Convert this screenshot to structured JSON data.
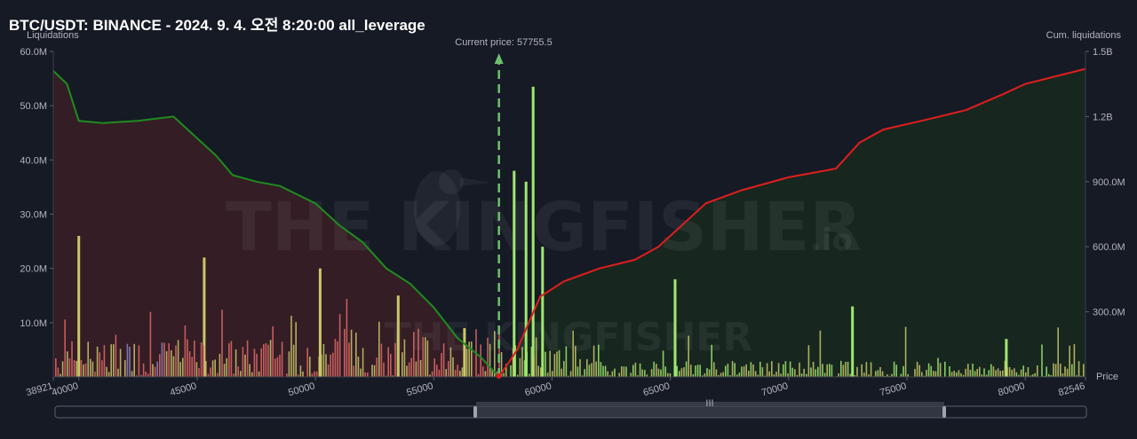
{
  "title": "BTC/USDT: BINANCE - 2024. 9. 4. 오전 8:20:00 all_leverage",
  "watermark": {
    "brand": "THE KINGFISHER",
    "suffix": ".io"
  },
  "colors": {
    "background": "#161a25",
    "short_cum_line": "#e01e1e",
    "long_cum_line": "#1e8c1e",
    "long_fill": "#3a1e26",
    "short_fill": "#17291f",
    "bar_green": "#9fe870",
    "bar_yellow": "#c9c76a",
    "bar_red": "#e06868",
    "bar_purple": "#8a86c8",
    "price_marker": "#6fbf6f"
  },
  "chart_data": {
    "type": "bar",
    "left_axis": {
      "label": "Liquidations",
      "ticks": [
        "60.0M",
        "50.0M",
        "40.0M",
        "30.0M",
        "20.0M",
        "10.0M"
      ],
      "ylim": [
        0,
        60000000
      ]
    },
    "right_axis": {
      "label": "Cum. liquidations",
      "ticks": [
        "1.5B",
        "1.2B",
        "900.0M",
        "600.0M",
        "300.0M"
      ],
      "ylim": [
        0,
        1500000000
      ]
    },
    "x_axis": {
      "label": "Price",
      "range": [
        38921,
        82546
      ],
      "ticks": [
        "38921",
        "40000",
        "45000",
        "50000",
        "55000",
        "60000",
        "65000",
        "70000",
        "75000",
        "80000",
        "82546"
      ]
    },
    "current_price": {
      "label": "Current price: 57755.5",
      "value": 57755.5
    },
    "cumulative_long_liquidations": {
      "points": [
        [
          38921,
          1410000000
        ],
        [
          39500,
          1350000000
        ],
        [
          40000,
          1180000000
        ],
        [
          41000,
          1170000000
        ],
        [
          42500,
          1180000000
        ],
        [
          44000,
          1200000000
        ],
        [
          45000,
          1100000000
        ],
        [
          45800,
          1020000000
        ],
        [
          46500,
          930000000
        ],
        [
          47500,
          900000000
        ],
        [
          48500,
          880000000
        ],
        [
          50000,
          800000000
        ],
        [
          51000,
          700000000
        ],
        [
          52000,
          620000000
        ],
        [
          53000,
          500000000
        ],
        [
          54000,
          430000000
        ],
        [
          55000,
          320000000
        ],
        [
          56000,
          180000000
        ],
        [
          57000,
          90000000
        ],
        [
          57755.5,
          0
        ]
      ]
    },
    "cumulative_short_liquidations": {
      "points": [
        [
          57755.5,
          0
        ],
        [
          58500,
          120000000
        ],
        [
          59500,
          370000000
        ],
        [
          60500,
          440000000
        ],
        [
          62000,
          500000000
        ],
        [
          63500,
          540000000
        ],
        [
          64500,
          600000000
        ],
        [
          65500,
          700000000
        ],
        [
          66500,
          800000000
        ],
        [
          68000,
          860000000
        ],
        [
          70000,
          920000000
        ],
        [
          72000,
          960000000
        ],
        [
          73000,
          1080000000
        ],
        [
          74000,
          1140000000
        ],
        [
          76000,
          1190000000
        ],
        [
          77500,
          1230000000
        ],
        [
          79000,
          1300000000
        ],
        [
          80000,
          1350000000
        ],
        [
          82546,
          1420000000
        ]
      ]
    },
    "notable_bars": [
      {
        "price": 40000,
        "value": 26000000,
        "side": "long"
      },
      {
        "price": 45300,
        "value": 22000000,
        "side": "long"
      },
      {
        "price": 50200,
        "value": 20000000,
        "side": "long"
      },
      {
        "price": 53500,
        "value": 15000000,
        "side": "long"
      },
      {
        "price": 56300,
        "value": 9000000,
        "side": "long"
      },
      {
        "price": 58400,
        "value": 38000000,
        "side": "short"
      },
      {
        "price": 58900,
        "value": 36000000,
        "side": "short"
      },
      {
        "price": 59200,
        "value": 53500000,
        "side": "short"
      },
      {
        "price": 59600,
        "value": 24000000,
        "side": "short"
      },
      {
        "price": 65200,
        "value": 18000000,
        "side": "short"
      },
      {
        "price": 72700,
        "value": 13000000,
        "side": "short"
      },
      {
        "price": 79200,
        "value": 7000000,
        "side": "short"
      }
    ]
  },
  "scrollbar": {
    "handle_label": "III"
  }
}
